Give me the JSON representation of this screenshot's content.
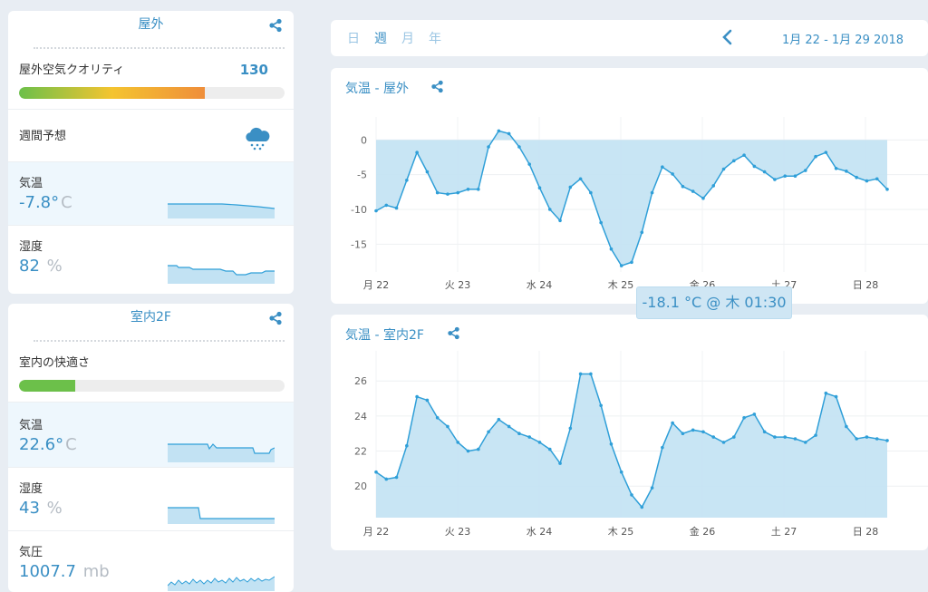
{
  "outdoor": {
    "title": "屋外",
    "aqi_label": "屋外空気クオリティ",
    "aqi_value": "130",
    "aqi_level": 0.7,
    "forecast_label": "週間予想",
    "temp_label": "気温",
    "temp_value": "-7.8°",
    "temp_unit": "C",
    "humidity_label": "湿度",
    "humidity_value": "82",
    "humidity_unit": "%"
  },
  "indoor": {
    "title": "室内2F",
    "comfort_label": "室内の快適さ",
    "comfort_level": 0.21,
    "temp_label": "気温",
    "temp_value": "22.6°",
    "temp_unit": "C",
    "humidity_label": "湿度",
    "humidity_value": "43",
    "humidity_unit": "%",
    "pressure_label": "気圧",
    "pressure_value": "1007.7",
    "pressure_unit": "mb"
  },
  "header": {
    "tabs": [
      "日",
      "週",
      "月",
      "年"
    ],
    "active_tab": "週",
    "range": "1月 22 - 1月 29 2018"
  },
  "charts_meta": {
    "outdoor_title": "気温 -  屋外",
    "indoor_title": "気温 -  室内2F",
    "tooltip": "-18.1 °C @ 木 01:30"
  },
  "colors": {
    "accent": "#3a8fc4",
    "line": "#2f9fd8",
    "fill": "#c2e2f3",
    "aqi_gradient": [
      "#6cc04a",
      "#f4c430",
      "#ef8e3a"
    ],
    "comfort": "#6cc04a"
  },
  "icons": {
    "share": "share-icon",
    "forecast": "cloud-snow-icon",
    "back": "chevron-left-icon"
  },
  "chart_data": [
    {
      "type": "area",
      "title": "気温 -  屋外",
      "x_ticks": [
        "月 22",
        "火 23",
        "水 24",
        "木 25",
        "金 26",
        "土 27",
        "日 28"
      ],
      "ylim": [
        -19,
        2
      ],
      "y_ticks": [
        0,
        -5,
        -10,
        -15
      ],
      "grid": true,
      "series": [
        {
          "values": [
            -10.2,
            -9.4,
            -9.8,
            -5.8,
            -1.8,
            -4.6,
            -7.6,
            -7.8,
            -7.6,
            -7.1,
            -7.1,
            -1.0,
            1.3,
            0.9,
            -1.0,
            -3.5,
            -6.9,
            -10.0,
            -11.6,
            -6.8,
            -5.6,
            -7.6,
            -11.9,
            -15.7,
            -18.1,
            -17.6,
            -13.3,
            -7.6,
            -3.9,
            -4.9,
            -6.7,
            -7.4,
            -8.4,
            -6.6,
            -4.2,
            -3.0,
            -2.2,
            -3.8,
            -4.6,
            -5.7,
            -5.2,
            -5.2,
            -4.4,
            -2.4,
            -1.8,
            -4.1,
            -4.5,
            -5.4,
            -5.9,
            -5.6,
            -7.1
          ]
        }
      ]
    },
    {
      "type": "area",
      "title": "気温 -  室内2F",
      "x_ticks": [
        "月 22",
        "火 23",
        "水 24",
        "木 25",
        "金 26",
        "土 27",
        "日 28"
      ],
      "ylim": [
        18.2,
        27.2
      ],
      "y_ticks": [
        26,
        24,
        22,
        20
      ],
      "grid": true,
      "series": [
        {
          "values": [
            20.8,
            20.4,
            20.5,
            22.3,
            25.1,
            24.9,
            23.9,
            23.4,
            22.5,
            22.0,
            22.1,
            23.1,
            23.8,
            23.4,
            23.0,
            22.8,
            22.5,
            22.1,
            21.3,
            23.3,
            26.4,
            26.4,
            24.6,
            22.4,
            20.8,
            19.5,
            18.8,
            19.9,
            22.2,
            23.6,
            23.0,
            23.2,
            23.1,
            22.8,
            22.5,
            22.8,
            23.9,
            24.1,
            23.1,
            22.8,
            22.8,
            22.7,
            22.5,
            22.9,
            25.3,
            25.1,
            23.4,
            22.7,
            22.8,
            22.7,
            22.6
          ]
        }
      ]
    }
  ]
}
